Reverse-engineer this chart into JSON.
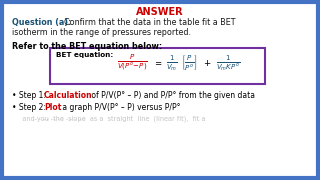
{
  "bg_color": "#ffffff",
  "border_color": "#4472c4",
  "title_text": "ANSWER",
  "title_color": "#cc0000",
  "question_label": "Question (a):",
  "question_label_color": "#1a5276",
  "question_body1": "Confirm that the data in the table fit a BET",
  "question_body2": "isotherm in the range of pressures reported.",
  "question_body_color": "#1a1a1a",
  "refer_text": "Refer to the BET equation below:",
  "refer_color": "#000000",
  "box_border_color": "#7030a0",
  "bet_label": "BET equation:",
  "bet_label_color": "#000000",
  "eq_left_color": "#cc0000",
  "eq_right_color": "#1a5276",
  "step1_label_color": "#cc0000",
  "step2_label_color": "#cc0000",
  "step3_color": "#aaaaaa",
  "font_size_title": 7.0,
  "font_size_body": 5.8,
  "font_size_eq": 5.2,
  "font_size_step": 5.5
}
